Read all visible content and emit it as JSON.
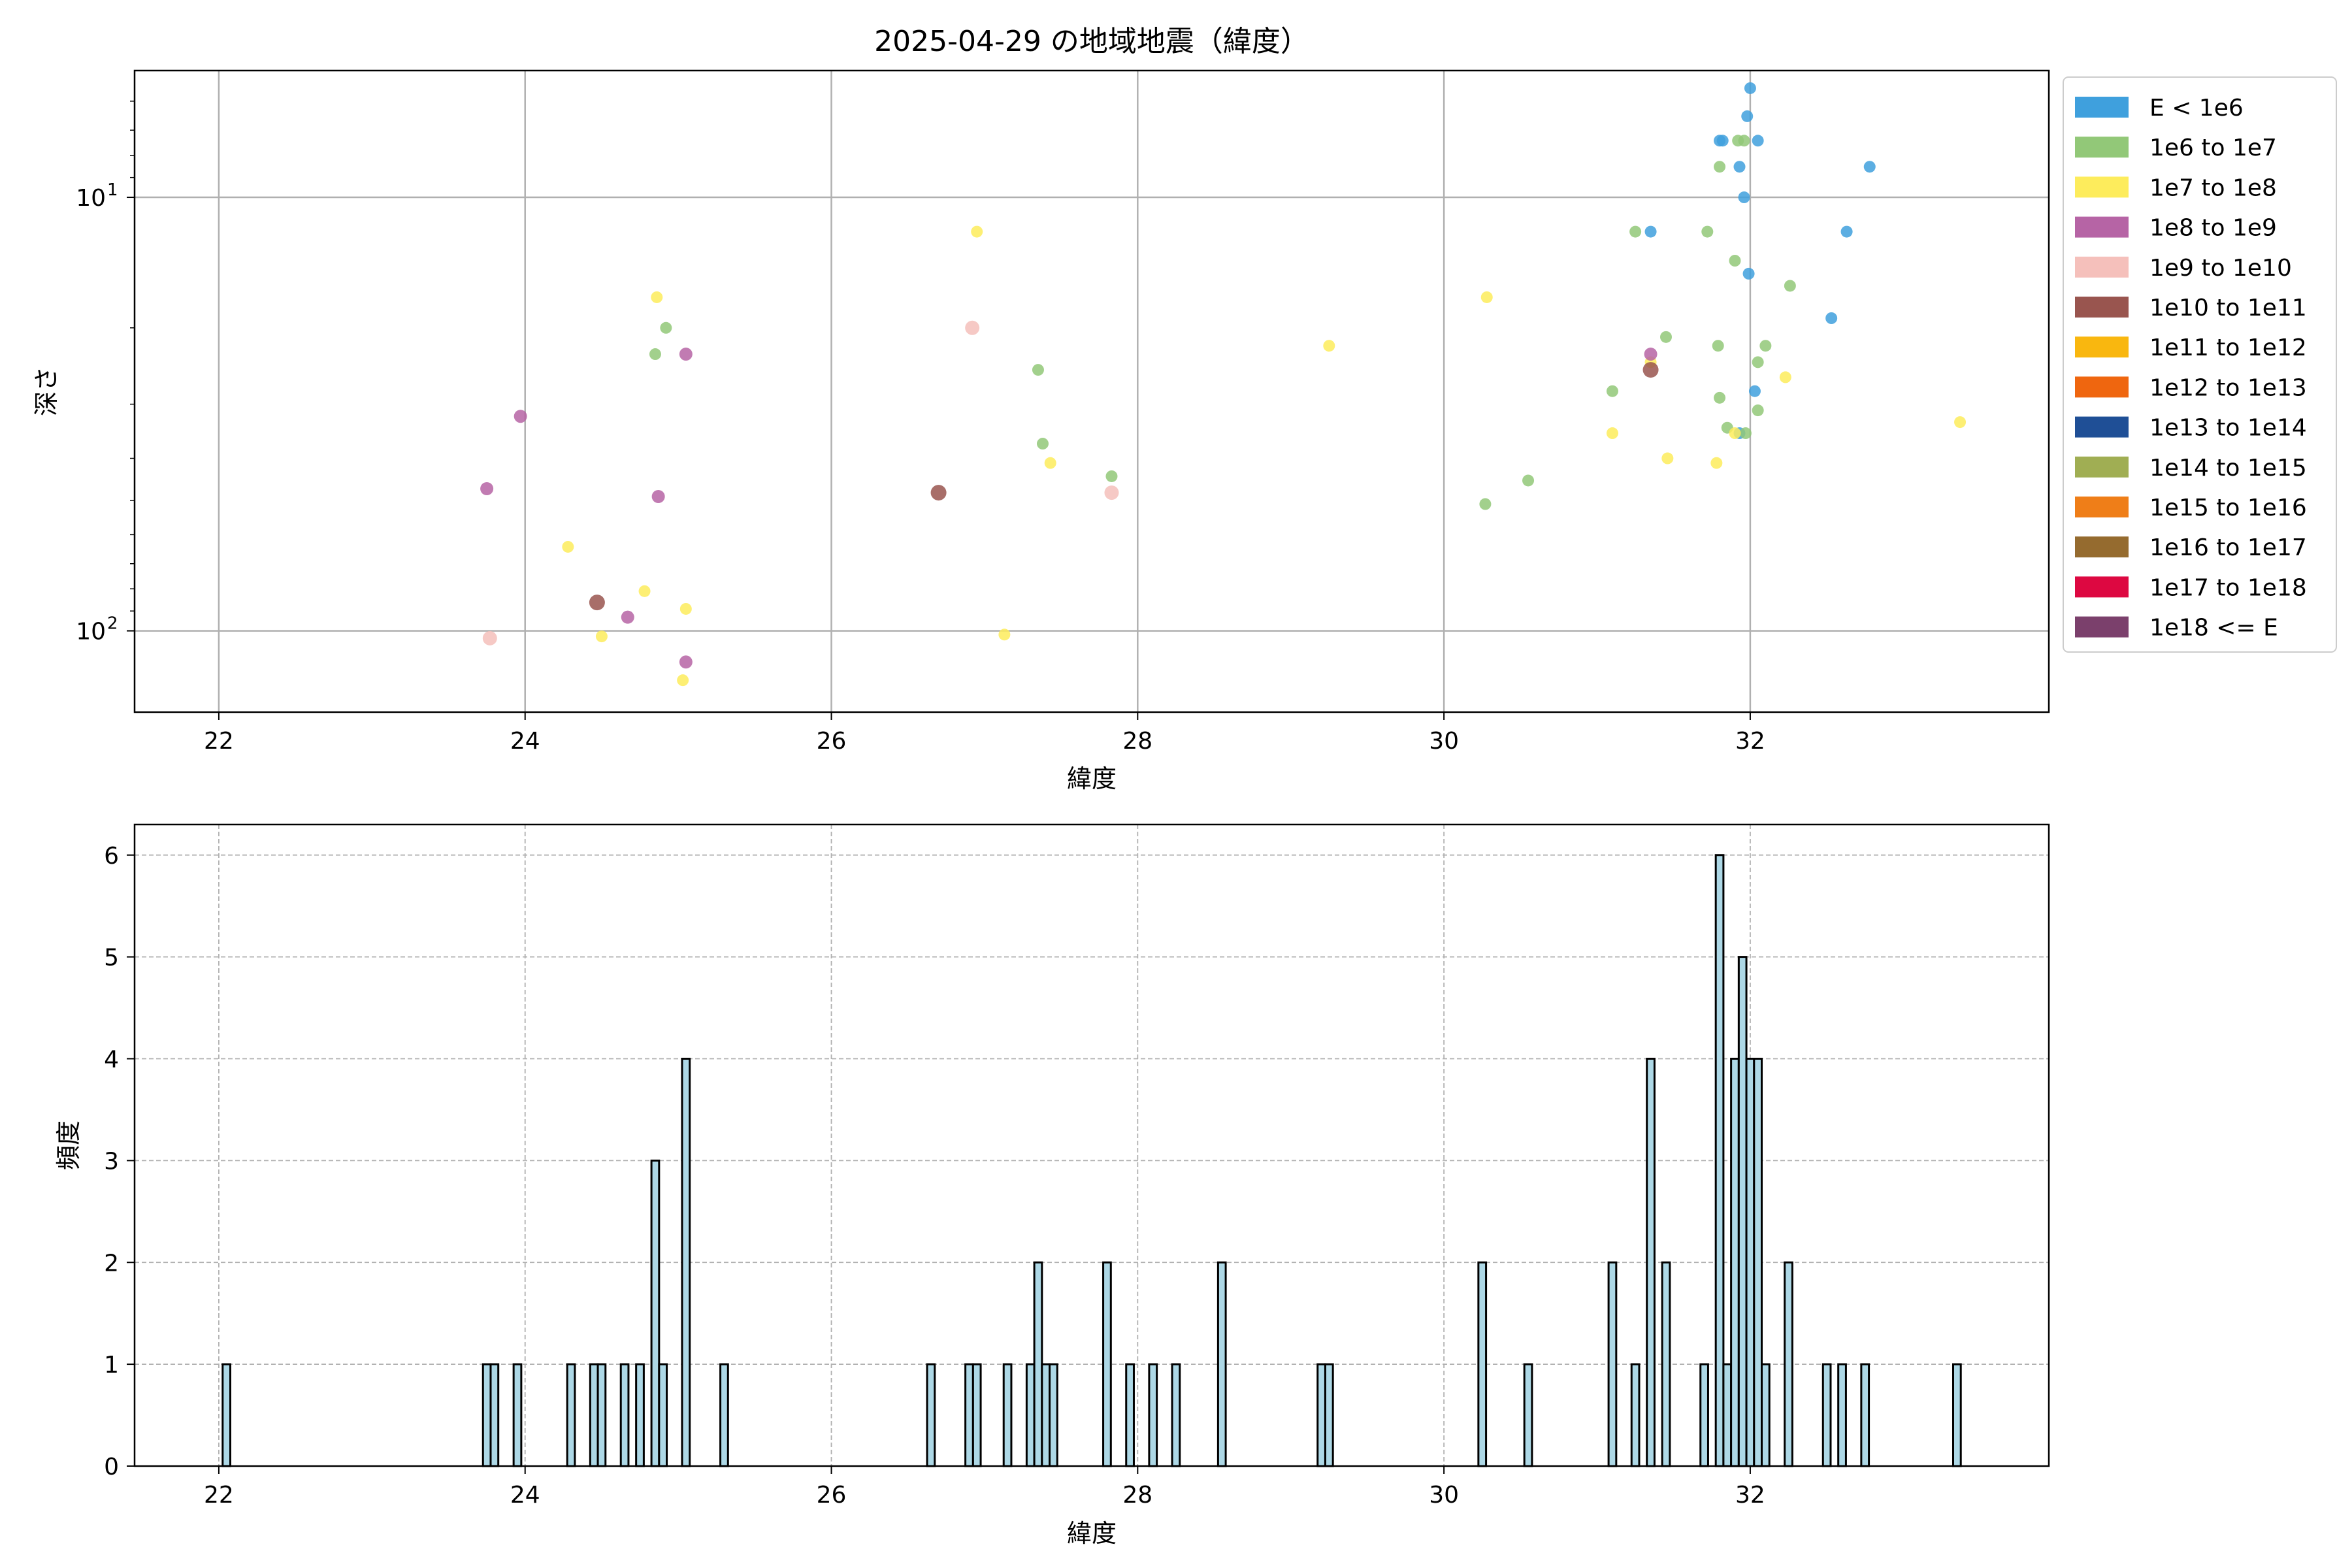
{
  "chart_data": [
    {
      "type": "scatter",
      "title": "2025-04-29 の地域地震（緯度）",
      "xlabel": "緯度",
      "ylabel": "深さ",
      "yscale": "log",
      "yaxis_inverted": true,
      "xlim": [
        21.45,
        33.95
      ],
      "ylim": [
        154,
        5.1
      ],
      "xticks": [
        22,
        24,
        26,
        28,
        30,
        32
      ],
      "yticks": [
        {
          "value": 10,
          "label": "10",
          "exp": "1"
        },
        {
          "value": 100,
          "label": "10",
          "exp": "2"
        }
      ],
      "grid": true,
      "legend_position": "outside-right",
      "legend": [
        {
          "label": "E < 1e6",
          "color": "#3fa0dd"
        },
        {
          "label": "1e6 to 1e7",
          "color": "#92c878"
        },
        {
          "label": "1e7 to 1e8",
          "color": "#fdec5c"
        },
        {
          "label": "1e8 to 1e9",
          "color": "#b664a5"
        },
        {
          "label": "1e9 to 1e10",
          "color": "#f5c0bb"
        },
        {
          "label": "1e10 to 1e11",
          "color": "#99554f"
        },
        {
          "label": "1e11 to 1e12",
          "color": "#f9b70f"
        },
        {
          "label": "1e12 to 1e13",
          "color": "#ef660f"
        },
        {
          "label": "1e13 to 1e14",
          "color": "#1f4f96"
        },
        {
          "label": "1e14 to 1e15",
          "color": "#a0ae53"
        },
        {
          "label": "1e15 to 1e16",
          "color": "#ef7e18"
        },
        {
          "label": "1e16 to 1e17",
          "color": "#956b2f"
        },
        {
          "label": "1e17 to 1e18",
          "color": "#dd0841"
        },
        {
          "label": "1e18 <= E",
          "color": "#7b406c"
        }
      ],
      "series": [
        {
          "legend_index": 0,
          "points": [
            [
              32.0,
              5.6
            ],
            [
              31.98,
              6.5
            ],
            [
              31.8,
              7.4
            ],
            [
              31.82,
              7.4
            ],
            [
              32.05,
              7.4
            ],
            [
              31.93,
              8.5
            ],
            [
              31.96,
              10.0
            ],
            [
              32.78,
              8.5
            ],
            [
              31.35,
              12.0
            ],
            [
              31.99,
              15.0
            ],
            [
              32.63,
              12.0
            ],
            [
              32.53,
              19.0
            ],
            [
              32.03,
              28.0
            ],
            [
              31.93,
              35.0
            ]
          ]
        },
        {
          "legend_index": 1,
          "points": [
            [
              31.96,
              7.4
            ],
            [
              31.92,
              7.4
            ],
            [
              31.8,
              8.5
            ],
            [
              31.25,
              12.0
            ],
            [
              31.72,
              12.0
            ],
            [
              31.9,
              14.0
            ],
            [
              32.26,
              16.0
            ],
            [
              31.45,
              21.0
            ],
            [
              31.79,
              22.0
            ],
            [
              32.1,
              22.0
            ],
            [
              32.05,
              24.0
            ],
            [
              31.1,
              28.0
            ],
            [
              31.8,
              29.0
            ],
            [
              32.05,
              31.0
            ],
            [
              31.85,
              34.0
            ],
            [
              31.97,
              35.0
            ],
            [
              30.55,
              45.0
            ],
            [
              30.27,
              51.0
            ],
            [
              24.92,
              20.0
            ],
            [
              24.85,
              23.0
            ],
            [
              27.35,
              25.0
            ],
            [
              27.38,
              37.0
            ],
            [
              27.83,
              44.0
            ]
          ]
        },
        {
          "legend_index": 2,
          "points": [
            [
              26.95,
              12.0
            ],
            [
              24.86,
              17.0
            ],
            [
              29.25,
              22.0
            ],
            [
              30.28,
              17.0
            ],
            [
              31.35,
              24.0
            ],
            [
              32.23,
              26.0
            ],
            [
              33.37,
              33.0
            ],
            [
              31.1,
              35.0
            ],
            [
              31.9,
              35.0
            ],
            [
              31.46,
              40.0
            ],
            [
              31.78,
              41.0
            ],
            [
              27.43,
              41.0
            ],
            [
              24.28,
              64.0
            ],
            [
              24.78,
              81.0
            ],
            [
              25.05,
              89.0
            ],
            [
              24.5,
              103.0
            ],
            [
              27.13,
              102.0
            ],
            [
              25.03,
              130.0
            ]
          ]
        },
        {
          "legend_index": 3,
          "points": [
            [
              23.97,
              32.0
            ],
            [
              23.75,
              47.0
            ],
            [
              24.87,
              49.0
            ],
            [
              25.05,
              23.0
            ],
            [
              31.35,
              23.0
            ],
            [
              24.67,
              93.0
            ],
            [
              25.05,
              118.0
            ]
          ]
        },
        {
          "legend_index": 4,
          "points": [
            [
              26.92,
              20.0
            ],
            [
              27.83,
              48.0
            ],
            [
              23.77,
              104.0
            ]
          ]
        },
        {
          "legend_index": 5,
          "points": [
            [
              31.35,
              25.0
            ],
            [
              26.7,
              48.0
            ],
            [
              24.47,
              86.0
            ]
          ]
        }
      ]
    },
    {
      "type": "bar",
      "title": "",
      "xlabel": "緯度",
      "ylabel": "頻度",
      "xlim": [
        21.45,
        33.95
      ],
      "ylim": [
        0,
        6.3
      ],
      "xticks": [
        22,
        24,
        26,
        28,
        30,
        32
      ],
      "yticks": [
        0,
        1,
        2,
        3,
        4,
        5,
        6
      ],
      "grid": true,
      "bin_width": 0.05,
      "bar_color": "#add8e6",
      "edge_color": "#000000",
      "bars": [
        [
          22.05,
          1
        ],
        [
          23.75,
          1
        ],
        [
          23.8,
          1
        ],
        [
          23.95,
          1
        ],
        [
          24.3,
          1
        ],
        [
          24.45,
          1
        ],
        [
          24.5,
          1
        ],
        [
          24.65,
          1
        ],
        [
          24.75,
          1
        ],
        [
          24.85,
          3
        ],
        [
          24.9,
          1
        ],
        [
          25.05,
          4
        ],
        [
          25.3,
          1
        ],
        [
          26.65,
          1
        ],
        [
          26.9,
          1
        ],
        [
          26.95,
          1
        ],
        [
          27.15,
          1
        ],
        [
          27.3,
          1
        ],
        [
          27.35,
          2
        ],
        [
          27.4,
          1
        ],
        [
          27.45,
          1
        ],
        [
          27.8,
          2
        ],
        [
          27.95,
          1
        ],
        [
          28.1,
          1
        ],
        [
          28.25,
          1
        ],
        [
          28.55,
          2
        ],
        [
          29.2,
          1
        ],
        [
          29.25,
          1
        ],
        [
          30.25,
          2
        ],
        [
          30.55,
          1
        ],
        [
          31.1,
          2
        ],
        [
          31.25,
          1
        ],
        [
          31.35,
          4
        ],
        [
          31.45,
          2
        ],
        [
          31.7,
          1
        ],
        [
          31.8,
          6
        ],
        [
          31.85,
          1
        ],
        [
          31.9,
          4
        ],
        [
          31.95,
          5
        ],
        [
          32.0,
          4
        ],
        [
          32.05,
          4
        ],
        [
          32.1,
          1
        ],
        [
          32.25,
          2
        ],
        [
          32.5,
          1
        ],
        [
          32.6,
          1
        ],
        [
          32.75,
          1
        ],
        [
          33.35,
          1
        ]
      ]
    }
  ]
}
